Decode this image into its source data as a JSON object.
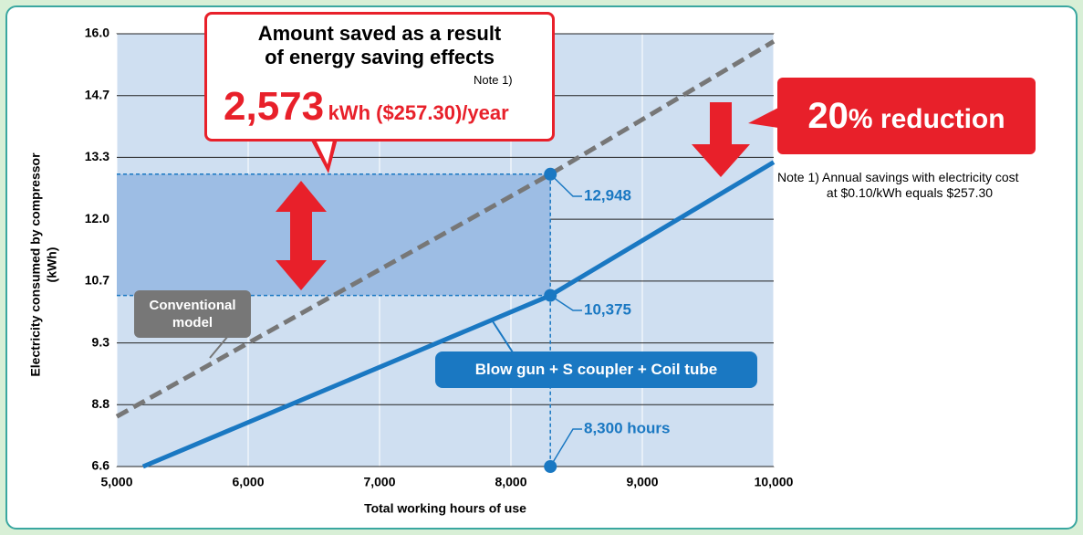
{
  "chart_data": {
    "type": "line",
    "x_label": "Total working hours of use",
    "y_label": "Electricity consumed by compressor",
    "y_unit": "(kWh)",
    "xlim": [
      5000,
      10000
    ],
    "xticks": [
      {
        "value": 5000,
        "label": "5,000"
      },
      {
        "value": 6000,
        "label": "6,000"
      },
      {
        "value": 7000,
        "label": "7,000"
      },
      {
        "value": 8000,
        "label": "8,000"
      },
      {
        "value": 9000,
        "label": "9,000"
      },
      {
        "value": 10000,
        "label": "10,000"
      }
    ],
    "ylim": [
      6.6,
      16.0
    ],
    "yticks": [
      6.6,
      8.8,
      9.3,
      10.7,
      {
        "value": 12,
        "label": "12.0"
      },
      13.3,
      14.7,
      {
        "value": 16,
        "label": "16.0"
      }
    ],
    "grid": true,
    "series": [
      {
        "name": "Conventional model",
        "color": "#777777",
        "dashed": true,
        "x": [
          5000,
          8300,
          10000
        ],
        "values": [
          8.38,
          12.948,
          15.84
        ]
      },
      {
        "name": "Blow gun + S coupler + Coil tube",
        "color": "#1a78c2",
        "dashed": false,
        "x": [
          5200,
          8300,
          10000
        ],
        "values": [
          6.6,
          10.375,
          13.2
        ]
      }
    ],
    "markers": [
      {
        "x": 8300,
        "y": 12.948,
        "label": "12,948"
      },
      {
        "x": 8300,
        "y": 10.375,
        "label": "10,375"
      },
      {
        "x": 8300,
        "y": 6.6,
        "label": "8,300 hours"
      }
    ],
    "marker_color": "#1a78c2",
    "callout": {
      "line1": "Amount saved as a result",
      "line2": "of energy saving effects",
      "note": "Note 1)",
      "amount": "2,573",
      "unit": "kWh ($257.30)/year"
    },
    "reduction": {
      "number": "20",
      "text": "% reduction"
    },
    "note": {
      "line1": "Note 1) Annual savings with electricity cost",
      "line2": "at $0.10/kWh equals $257.30"
    }
  }
}
